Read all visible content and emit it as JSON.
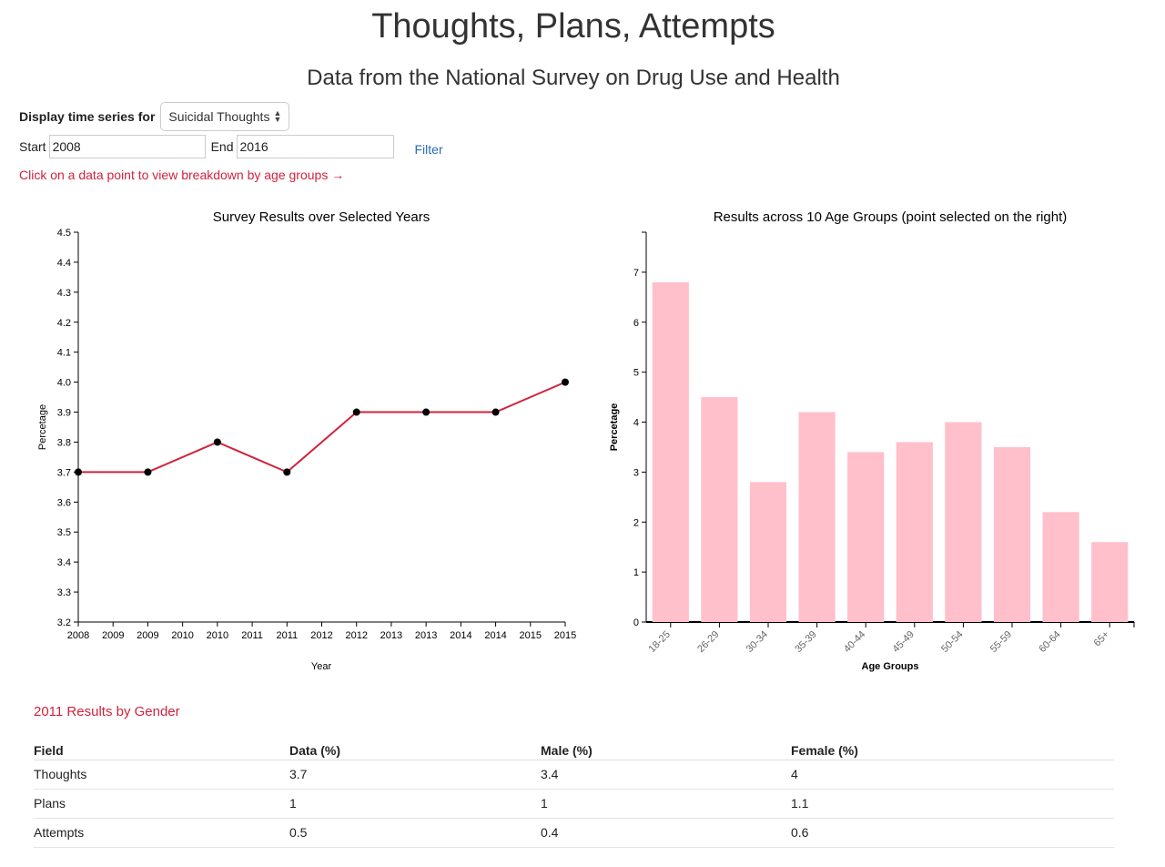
{
  "header": {
    "title": "Thoughts, Plans, Attempts",
    "subtitle": "Data from the National Survey on Drug Use and Health"
  },
  "controls": {
    "display_label": "Display time series for",
    "selected_series": "Suicidal Thoughts",
    "start_label": "Start",
    "start_value": "2008",
    "end_label": "End",
    "end_value": "2016",
    "filter_label": "Filter",
    "hint": "Click on a data point to view breakdown by age groups →"
  },
  "chart_data": [
    {
      "type": "line",
      "title": "Survey Results over Selected Years",
      "xlabel": "Year",
      "ylabel": "Percetage",
      "x": [
        2008,
        2009,
        2010,
        2011,
        2012,
        2013,
        2014,
        2015
      ],
      "y": [
        3.7,
        3.7,
        3.8,
        3.7,
        3.9,
        3.9,
        3.9,
        4.0
      ],
      "x_ticks": [
        "2008",
        "2009",
        "2009",
        "2010",
        "2010",
        "2011",
        "2011",
        "2012",
        "2012",
        "2013",
        "2013",
        "2014",
        "2014",
        "2015",
        "2015"
      ],
      "y_ticks": [
        "3.2",
        "3.3",
        "3.4",
        "3.5",
        "3.6",
        "3.7",
        "3.8",
        "3.9",
        "4.0",
        "4.1",
        "4.2",
        "4.3",
        "4.4",
        "4.5"
      ],
      "xlim": [
        2008,
        2015
      ],
      "ylim": [
        3.2,
        4.5
      ],
      "grid": false,
      "line_color": "#d0233c",
      "point_color": "#000000"
    },
    {
      "type": "bar",
      "title": "Results across 10 Age Groups (point selected on the right)",
      "xlabel": "Age Groups",
      "ylabel": "Percetage",
      "categories": [
        "18-25",
        "26-29",
        "30-34",
        "35-39",
        "40-44",
        "45-49",
        "50-54",
        "55-59",
        "60-64",
        "65+"
      ],
      "values": [
        6.8,
        4.5,
        2.8,
        4.2,
        3.4,
        3.6,
        4.0,
        3.5,
        2.2,
        1.6
      ],
      "y_ticks": [
        "0",
        "1",
        "2",
        "3",
        "4",
        "5",
        "6",
        "7"
      ],
      "ylim": [
        0,
        7.8
      ],
      "grid": false,
      "bar_color": "#ffc0cb"
    }
  ],
  "gender_section": {
    "title": "2011 Results by Gender",
    "columns": [
      "Field",
      "Data (%)",
      "Male (%)",
      "Female (%)"
    ],
    "rows": [
      [
        "Thoughts",
        "3.7",
        "3.4",
        "4"
      ],
      [
        "Plans",
        "1",
        "1",
        "1.1"
      ],
      [
        "Attempts",
        "0.5",
        "0.4",
        "0.6"
      ]
    ]
  }
}
